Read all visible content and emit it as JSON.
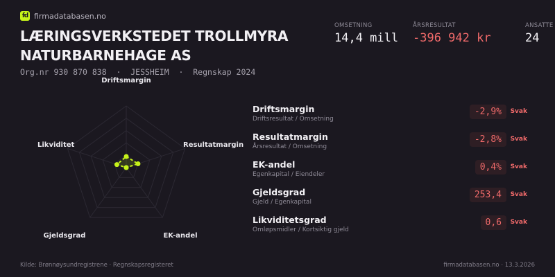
{
  "brand": {
    "logo_text": "fd",
    "name": "firmadatabasen.no",
    "accent": "#c6f21a"
  },
  "company": {
    "name": "LÆRINGSVERKSTEDET TROLLMYRA NATURBARNEHAGE AS",
    "subtitle": "Org.nr 930 870 838  ·  JESSHEIM  ·  Regnskap 2024"
  },
  "kpis": [
    {
      "label": "OMSETNING",
      "value": "14,4 mill"
    },
    {
      "label": "ÅRSRESULTAT",
      "value": "-396 942 kr"
    },
    {
      "label": "ANSATTE",
      "value": "24"
    }
  ],
  "chart_data": {
    "type": "radar",
    "axes": [
      "Driftsmargin",
      "Resultatmargin",
      "EK-andel",
      "Gjeldsgrad",
      "Likviditet"
    ],
    "values": [
      0.18,
      0.2,
      0,
      0,
      0.16
    ],
    "range": [
      0,
      1
    ],
    "rings": 5,
    "color": "#c6f21a"
  },
  "metrics": [
    {
      "name": "Driftsmargin",
      "desc": "Driftsresultat / Omsetning",
      "value": "-2,9%",
      "status": "Svak"
    },
    {
      "name": "Resultatmargin",
      "desc": "Årsresultat / Omsetning",
      "value": "-2,8%",
      "status": "Svak"
    },
    {
      "name": "EK-andel",
      "desc": "Egenkapital / Eiendeler",
      "value": "0,4%",
      "status": "Svak"
    },
    {
      "name": "Gjeldsgrad",
      "desc": "Gjeld / Egenkapital",
      "value": "253,4",
      "status": "Svak"
    },
    {
      "name": "Likviditetsgrad",
      "desc": "Omløpsmidler / Kortsiktig gjeld",
      "value": "0,6",
      "status": "Svak"
    }
  ],
  "footer": {
    "source": "Kilde: Brønnøysundregistrene · Regnskapsregisteret",
    "site_date": "firmadatabasen.no · 13.3.2026"
  }
}
